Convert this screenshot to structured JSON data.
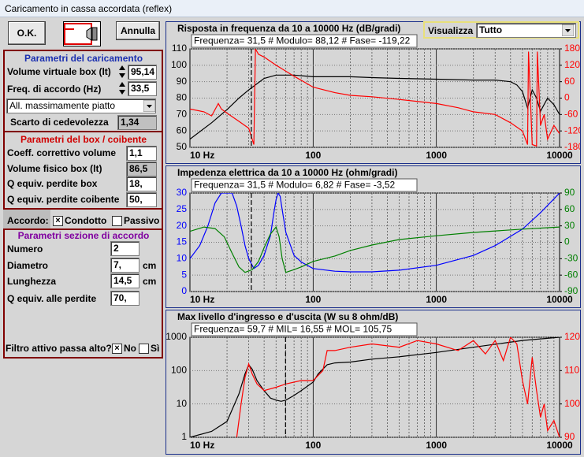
{
  "window": {
    "title": "Caricamento in cassa accordata (reflex)"
  },
  "buttons": {
    "ok": "O.K.",
    "cancel": "Annulla"
  },
  "view": {
    "label": "Visualizza",
    "value": "Tutto"
  },
  "panel": {
    "group1": {
      "title": "Parametri del caricamento",
      "rows": [
        {
          "label": "Volume virtuale box (lt)",
          "value": "95,14"
        },
        {
          "label": "Freq. di accordo (Hz)",
          "value": "33,5"
        }
      ],
      "alignment": "All. massimamente piatto",
      "compliance": {
        "label": "Scarto di cedevolezza",
        "value": "1,34"
      }
    },
    "group2": {
      "title": "Parametri del box / coibente",
      "rows": [
        {
          "label": "Coeff. correttivo volume",
          "value": "1,1"
        },
        {
          "label": "Volume fisico box (lt)",
          "value": "86,5"
        },
        {
          "label": "Q equiv. perdite box",
          "value": "18,"
        },
        {
          "label": "Q equiv. perdite coibente",
          "value": "50,"
        }
      ]
    },
    "tuning": {
      "label": "Accordo:",
      "options": [
        {
          "label": "Condotto",
          "checked": true
        },
        {
          "label": "Passivo",
          "checked": false
        }
      ]
    },
    "group3": {
      "title": "Parametri sezione di accordo",
      "rows": [
        {
          "label": "Numero",
          "value": "2"
        },
        {
          "label": "Diametro",
          "value": "7,",
          "unit": "cm"
        },
        {
          "label": "Lunghezza",
          "value": "14,5",
          "unit": "cm"
        },
        {
          "label": "Q equiv. alle perdite",
          "value": "70,"
        }
      ]
    },
    "filter": {
      "label": "Filtro attivo passa alto?",
      "options": [
        {
          "label": "No",
          "checked": true
        },
        {
          "label": "Sì",
          "checked": false
        }
      ]
    }
  },
  "charts": [
    {
      "type": "line",
      "title": "Risposta in frequenza da 10 a 10000 Hz (dB/gradi)",
      "readout": "Frequenza= 31,5 # Modulo= 88,12 # Fase= -119,22",
      "cursor_x": 31.5,
      "x_log": true,
      "y_log": false,
      "xlim": [
        10,
        10000
      ],
      "xticks": [
        {
          "value": 10,
          "label": "10 Hz"
        },
        100,
        1000,
        10000
      ],
      "ylim": [
        50,
        110
      ],
      "yticks": [
        50,
        60,
        70,
        80,
        90,
        100,
        110
      ],
      "y2lim": [
        -180,
        180
      ],
      "y2ticks": [
        -180,
        -120,
        -60,
        0,
        60,
        120,
        180
      ],
      "series": [
        {
          "color": "#000000",
          "axis": "y",
          "x": [
            10,
            15,
            20,
            25,
            30,
            40,
            50,
            70,
            100,
            200,
            300,
            500,
            1000,
            2000,
            3000,
            4000,
            4500,
            5000,
            5500,
            6000,
            6500,
            7000,
            8000,
            9000,
            10000
          ],
          "values": [
            55,
            65,
            73,
            80,
            85,
            92,
            94,
            94,
            93,
            93,
            92.5,
            92,
            91.5,
            91,
            91,
            90,
            88,
            84,
            74,
            85,
            80,
            72,
            80,
            76,
            70
          ]
        },
        {
          "color": "#ff0000",
          "axis": "y2",
          "x": [
            10,
            13,
            15,
            17,
            18,
            20,
            25,
            30,
            33,
            34,
            36,
            40,
            50,
            70,
            100,
            150,
            200,
            300,
            500,
            1000,
            1500,
            2000,
            3000,
            4000,
            5000,
            5500,
            5600,
            6000,
            6500,
            6600,
            7000,
            7500,
            8000,
            9000,
            10000
          ],
          "values": [
            -40,
            -50,
            -65,
            -20,
            -40,
            -55,
            -85,
            -110,
            -170,
            180,
            160,
            150,
            120,
            80,
            40,
            20,
            10,
            5,
            -5,
            -20,
            -35,
            -50,
            -60,
            -90,
            -120,
            -170,
            170,
            -170,
            -175,
            170,
            -100,
            -60,
            -150,
            -100,
            -130
          ]
        }
      ]
    },
    {
      "type": "line",
      "title": "Impedenza elettrica da 10 a 10000 Hz (ohm/gradi)",
      "readout": "Frequenza= 31,5 # Modulo= 6,82 # Fase= -3,52",
      "cursor_x": 31.5,
      "x_log": true,
      "y_log": false,
      "xlim": [
        10,
        10000
      ],
      "xticks": [
        {
          "value": 10,
          "label": "10 Hz"
        },
        100,
        1000,
        10000
      ],
      "ylim": [
        0,
        30
      ],
      "yticks": [
        0,
        5,
        10,
        15,
        20,
        25,
        30
      ],
      "y2lim": [
        -90,
        90
      ],
      "y2ticks": [
        -90,
        -60,
        -30,
        0,
        30,
        60,
        90
      ],
      "series": [
        {
          "color": "#0000ff",
          "axis": "y",
          "x": [
            10,
            12,
            14,
            16,
            18,
            22,
            24,
            26,
            28,
            30,
            33,
            36,
            40,
            45,
            48,
            50,
            52,
            54,
            56,
            60,
            70,
            80,
            100,
            150,
            200,
            300,
            500,
            1000,
            2000,
            3000,
            5000,
            7000,
            10000
          ],
          "values": [
            10,
            14,
            20,
            27,
            30,
            30,
            26,
            20,
            14,
            10,
            7,
            8,
            11,
            17,
            24,
            28,
            30,
            29,
            25,
            18,
            11,
            9,
            7,
            6.2,
            6,
            6,
            6.5,
            8,
            11,
            14,
            19,
            24,
            30
          ]
        },
        {
          "color": "#008000",
          "axis": "y2",
          "x": [
            10,
            13,
            16,
            19,
            22,
            25,
            28,
            32,
            36,
            40,
            45,
            50,
            53,
            56,
            60,
            70,
            80,
            100,
            150,
            200,
            300,
            500,
            1000,
            2000,
            5000,
            10000
          ],
          "values": [
            20,
            28,
            25,
            10,
            -20,
            -45,
            -55,
            -50,
            -35,
            -10,
            15,
            28,
            10,
            -30,
            -55,
            -50,
            -45,
            -35,
            -25,
            -15,
            -5,
            5,
            12,
            18,
            24,
            28
          ]
        }
      ]
    },
    {
      "type": "line",
      "title": "Max livello d'ingresso e d'uscita (W su 8 ohm/dB)",
      "readout": "Frequenza= 59,7 # MIL= 16,55 # MOL= 105,75",
      "cursor_x": 59.7,
      "x_log": true,
      "y_log": true,
      "xlim": [
        10,
        10000
      ],
      "xticks": [
        {
          "value": 10,
          "label": "10 Hz"
        },
        100,
        1000,
        10000
      ],
      "ylim": [
        1,
        1000
      ],
      "yticks": [
        1,
        10,
        100,
        1000
      ],
      "y2lim": [
        90,
        120
      ],
      "y2ticks": [
        90,
        100,
        110,
        120
      ],
      "series": [
        {
          "color": "#000000",
          "axis": "y",
          "x": [
            10,
            15,
            20,
            25,
            28,
            30,
            32,
            35,
            40,
            45,
            50,
            55,
            60,
            70,
            80,
            100,
            110,
            130,
            150,
            200,
            300,
            500,
            1000,
            2000,
            5000,
            10000
          ],
          "values": [
            1,
            1.5,
            3,
            20,
            80,
            150,
            110,
            50,
            25,
            15,
            13,
            12,
            13,
            18,
            25,
            45,
            80,
            150,
            170,
            180,
            220,
            260,
            350,
            500,
            800,
            1000
          ]
        },
        {
          "color": "#ff0000",
          "axis": "y2",
          "x": [
            24,
            26,
            28,
            30,
            32,
            35,
            40,
            50,
            60,
            80,
            100,
            120,
            130,
            150,
            200,
            300,
            500,
            700,
            1000,
            1500,
            2000,
            2500,
            3000,
            3500,
            4000,
            4500,
            5000,
            5500,
            6000,
            6500,
            7000,
            7500,
            8000,
            9000,
            10000
          ],
          "values": [
            90,
            100,
            108,
            112,
            109,
            106,
            104,
            105,
            106,
            107,
            107,
            110,
            116,
            116,
            117,
            118,
            117,
            119,
            118,
            116,
            119,
            115,
            119,
            113,
            120,
            118,
            107,
            100,
            114,
            104,
            96,
            100,
            92,
            95,
            90
          ]
        }
      ]
    }
  ]
}
